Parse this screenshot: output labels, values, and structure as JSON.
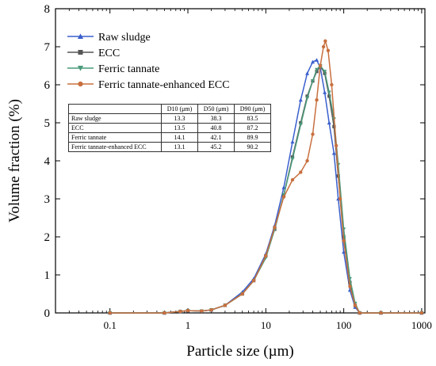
{
  "chart_data": {
    "type": "line",
    "xlabel": "Particle size (µm)",
    "ylabel": "Volume fraction (%)",
    "xscale": "log",
    "xlim": [
      0.02,
      1100
    ],
    "ylim": [
      0,
      8
    ],
    "xticks": [
      {
        "value": 0.1,
        "label": "0.1"
      },
      {
        "value": 1,
        "label": "1"
      },
      {
        "value": 10,
        "label": "10"
      },
      {
        "value": 100,
        "label": "100"
      },
      {
        "value": 1000,
        "label": "1000"
      }
    ],
    "yticks": [
      0,
      1,
      2,
      3,
      4,
      5,
      6,
      7,
      8
    ],
    "grid": false,
    "legend_position": "top-left",
    "series": [
      {
        "name": "Raw sludge",
        "color": "#3a5fcd",
        "marker": "triangle-up",
        "points": [
          [
            0.1,
            0
          ],
          [
            0.5,
            0
          ],
          [
            0.8,
            0.04
          ],
          [
            1,
            0.06
          ],
          [
            1.5,
            0.05
          ],
          [
            2,
            0.08
          ],
          [
            3,
            0.2
          ],
          [
            5,
            0.55
          ],
          [
            7,
            0.9
          ],
          [
            10,
            1.55
          ],
          [
            13,
            2.3
          ],
          [
            17,
            3.3
          ],
          [
            22,
            4.5
          ],
          [
            28,
            5.6
          ],
          [
            34,
            6.3
          ],
          [
            40,
            6.6
          ],
          [
            45,
            6.65
          ],
          [
            50,
            6.45
          ],
          [
            57,
            5.8
          ],
          [
            65,
            5.0
          ],
          [
            75,
            4.2
          ],
          [
            85,
            3.0
          ],
          [
            100,
            1.6
          ],
          [
            120,
            0.6
          ],
          [
            140,
            0.15
          ],
          [
            160,
            0
          ],
          [
            300,
            0
          ],
          [
            1000,
            0
          ]
        ]
      },
      {
        "name": "ECC",
        "color": "#555555",
        "marker": "square",
        "points": [
          [
            0.1,
            0
          ],
          [
            0.5,
            0
          ],
          [
            0.8,
            0.04
          ],
          [
            1,
            0.06
          ],
          [
            1.5,
            0.05
          ],
          [
            2,
            0.08
          ],
          [
            3,
            0.2
          ],
          [
            5,
            0.5
          ],
          [
            7,
            0.85
          ],
          [
            10,
            1.5
          ],
          [
            13,
            2.2
          ],
          [
            17,
            3.1
          ],
          [
            22,
            4.1
          ],
          [
            28,
            5.0
          ],
          [
            34,
            5.7
          ],
          [
            40,
            6.1
          ],
          [
            45,
            6.35
          ],
          [
            50,
            6.5
          ],
          [
            57,
            6.3
          ],
          [
            65,
            5.7
          ],
          [
            75,
            4.9
          ],
          [
            85,
            3.6
          ],
          [
            100,
            2.0
          ],
          [
            120,
            0.8
          ],
          [
            140,
            0.2
          ],
          [
            160,
            0
          ],
          [
            300,
            0
          ],
          [
            1000,
            0
          ]
        ]
      },
      {
        "name": "Ferric tannate",
        "color": "#4a9a7a",
        "marker": "triangle-down",
        "points": [
          [
            0.1,
            0
          ],
          [
            0.5,
            0
          ],
          [
            0.8,
            0.04
          ],
          [
            1,
            0.06
          ],
          [
            1.5,
            0.05
          ],
          [
            2,
            0.08
          ],
          [
            3,
            0.2
          ],
          [
            5,
            0.5
          ],
          [
            7,
            0.85
          ],
          [
            10,
            1.45
          ],
          [
            13,
            2.2
          ],
          [
            17,
            3.1
          ],
          [
            22,
            4.05
          ],
          [
            28,
            4.95
          ],
          [
            34,
            5.65
          ],
          [
            40,
            6.1
          ],
          [
            45,
            6.4
          ],
          [
            50,
            6.5
          ],
          [
            57,
            6.35
          ],
          [
            65,
            5.8
          ],
          [
            75,
            5.1
          ],
          [
            85,
            3.9
          ],
          [
            100,
            2.2
          ],
          [
            120,
            0.9
          ],
          [
            140,
            0.25
          ],
          [
            160,
            0
          ],
          [
            300,
            0
          ],
          [
            1000,
            0
          ]
        ]
      },
      {
        "name": "Ferric tannate-enhanced ECC",
        "color": "#c8703f",
        "marker": "circle",
        "points": [
          [
            0.1,
            0
          ],
          [
            0.5,
            0
          ],
          [
            0.8,
            0.04
          ],
          [
            1,
            0.06
          ],
          [
            1.5,
            0.05
          ],
          [
            2,
            0.08
          ],
          [
            3,
            0.2
          ],
          [
            5,
            0.5
          ],
          [
            7,
            0.85
          ],
          [
            10,
            1.5
          ],
          [
            13,
            2.25
          ],
          [
            17,
            3.05
          ],
          [
            22,
            3.5
          ],
          [
            28,
            3.7
          ],
          [
            34,
            4.0
          ],
          [
            40,
            4.7
          ],
          [
            45,
            5.6
          ],
          [
            50,
            6.5
          ],
          [
            55,
            7.0
          ],
          [
            58,
            7.15
          ],
          [
            63,
            6.9
          ],
          [
            70,
            6.0
          ],
          [
            80,
            4.4
          ],
          [
            90,
            3.0
          ],
          [
            100,
            1.9
          ],
          [
            120,
            0.7
          ],
          [
            140,
            0.2
          ],
          [
            160,
            0
          ],
          [
            300,
            0
          ],
          [
            1000,
            0
          ]
        ]
      }
    ],
    "table": {
      "headers": [
        "",
        "D10 (μm)",
        "D50 (μm)",
        "D90 (μm)"
      ],
      "rows": [
        [
          "Raw sludge",
          "13.3",
          "38.3",
          "83.5"
        ],
        [
          "ECC",
          "13.5",
          "40.8",
          "87.2"
        ],
        [
          "Ferric tannate",
          "14.1",
          "42.1",
          "89.9"
        ],
        [
          "Ferric tannate-enhanced ECC",
          "13.1",
          "45.2",
          "90.2"
        ]
      ]
    }
  }
}
